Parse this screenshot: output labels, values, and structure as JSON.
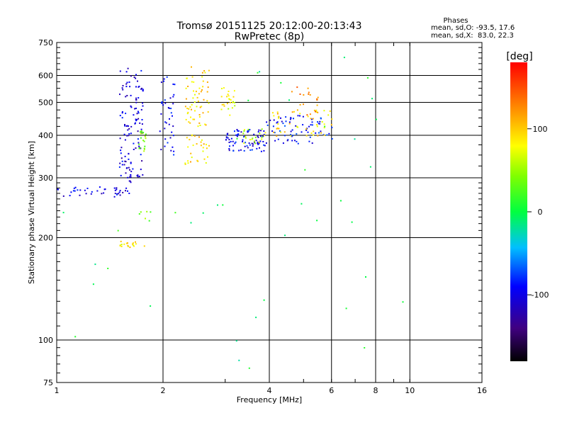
{
  "chart_data": {
    "type": "scatter",
    "title": "Tromsø 20151125 20:12:00-20:13:43",
    "subtitle": "RwPretec (8p)",
    "xlabel": "Frequency [MHz]",
    "ylabel": "Stationary phase Virtual Height [km]",
    "x_scale": "log",
    "y_scale": "log",
    "xlim": [
      1,
      16
    ],
    "ylim": [
      75,
      750
    ],
    "x_ticks": [
      1,
      2,
      4,
      6,
      8,
      10,
      16
    ],
    "x_tick_labels": [
      "1",
      "2",
      "4",
      "6",
      "8",
      "10",
      "16"
    ],
    "y_ticks": [
      75,
      100,
      200,
      300,
      400,
      500,
      600,
      750
    ],
    "y_tick_labels": [
      "75",
      "100",
      "200",
      "300",
      "400",
      "500",
      "600",
      "750"
    ],
    "grid": true,
    "stats": {
      "heading": "Phases",
      "line1": "mean, sd,O: -93.5, 17.6",
      "line2": "mean, sd,X:  83.0, 22.3"
    },
    "colorbar": {
      "label": "[deg]",
      "range": [
        -180,
        180
      ],
      "ticks": [
        100,
        0,
        -100
      ],
      "tick_labels": [
        "100",
        "0",
        "-100"
      ]
    },
    "point_groups": [
      {
        "trace": "F-layer trace",
        "x": [
          1.0,
          1.6
        ],
        "y": [
          285,
          265
        ],
        "phase_deg": -100,
        "count": 40
      },
      {
        "trace": "F-layer trace",
        "x": [
          1.6,
          1.62
        ],
        "y": [
          290,
          310
        ],
        "phase_deg": -110,
        "count": 8
      },
      {
        "trace": "F-layer trace",
        "x": [
          1.5,
          1.75
        ],
        "y": [
          300,
          640
        ],
        "phase_deg": -105,
        "count": 120
      },
      {
        "trace": "F-layer trace",
        "x": [
          1.7,
          1.78
        ],
        "y": [
          360,
          420
        ],
        "phase_deg": 40,
        "count": 20
      },
      {
        "trace": "F-layer trace",
        "x": [
          1.95,
          2.15
        ],
        "y": [
          350,
          600
        ],
        "phase_deg": -100,
        "count": 40
      },
      {
        "trace": "F-layer trace",
        "x": [
          2.3,
          2.7
        ],
        "y": [
          330,
          640
        ],
        "phase_deg": 95,
        "count": 90
      },
      {
        "trace": "F-layer trace",
        "x": [
          2.9,
          3.2
        ],
        "y": [
          460,
          560
        ],
        "phase_deg": 80,
        "count": 25
      },
      {
        "trace": "F-layer trace",
        "x": [
          3.0,
          3.9
        ],
        "y": [
          360,
          420
        ],
        "phase_deg": -95,
        "count": 80
      },
      {
        "trace": "F-layer trace",
        "x": [
          3.3,
          3.9
        ],
        "y": [
          380,
          420
        ],
        "phase_deg": 60,
        "count": 20
      },
      {
        "trace": "F-layer trace",
        "x": [
          3.9,
          6.0
        ],
        "y": [
          380,
          460
        ],
        "phase_deg": -90,
        "count": 70
      },
      {
        "trace": "F-layer trace",
        "x": [
          4.0,
          6.0
        ],
        "y": [
          400,
          480
        ],
        "phase_deg": 95,
        "count": 45
      },
      {
        "trace": "F-layer trace",
        "x": [
          4.5,
          5.5
        ],
        "y": [
          460,
          560
        ],
        "phase_deg": 130,
        "count": 20
      },
      {
        "trace": "E-layer trace",
        "x": [
          1.5,
          1.8
        ],
        "y": [
          188,
          196
        ],
        "phase_deg": 90,
        "count": 18
      },
      {
        "trace": "E-layer trace",
        "x": [
          1.65,
          1.85
        ],
        "y": [
          225,
          240
        ],
        "phase_deg": 40,
        "count": 6
      },
      {
        "trace": "scattered",
        "x": [
          1.0,
          10.0
        ],
        "y": [
          80,
          700
        ],
        "phase_deg": 0,
        "count": 40
      }
    ]
  }
}
